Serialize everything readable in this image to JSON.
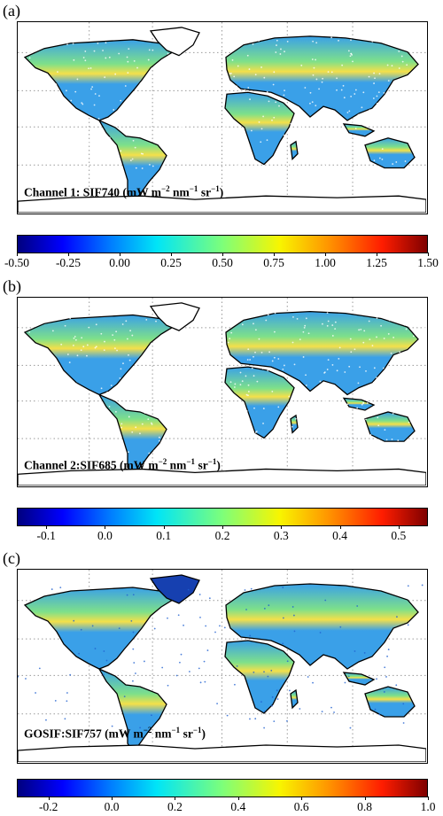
{
  "panels": [
    {
      "letter": "(a)",
      "label_main": "Channel 1: SIF740 (mW m",
      "colorbar_ticks": [
        "-0.50",
        "-0.25",
        "0.00",
        "0.25",
        "0.50",
        "0.75",
        "1.00",
        "1.25",
        "1.50"
      ],
      "colorbar_range": [
        -0.5,
        1.5
      ]
    },
    {
      "letter": "(b)",
      "label_main": "Channel 2:SIF685 (mW m",
      "colorbar_ticks": [
        "-0.1",
        "0.0",
        "0.1",
        "0.2",
        "0.3",
        "0.4",
        "0.5"
      ],
      "colorbar_range": [
        -0.15,
        0.55
      ]
    },
    {
      "letter": "(c)",
      "label_main": "GOSIF:SIF757 (mW m",
      "colorbar_ticks": [
        "-0.2",
        "0.0",
        "0.2",
        "0.4",
        "0.6",
        "0.8",
        "1.0"
      ],
      "colorbar_range": [
        -0.3,
        1.0
      ]
    }
  ],
  "units": {
    "exp1": "−2",
    "nm": " nm",
    "exp2": "−1",
    "sr": " sr",
    "exp3": "−1",
    "close": ")"
  },
  "colors": {
    "ocean": "#ffffff",
    "land_low": "#3aa0e8",
    "land_mid": "#7ee08a",
    "land_high": "#f4e04a",
    "coast": "#000000",
    "grid": "#9a9a9a"
  }
}
